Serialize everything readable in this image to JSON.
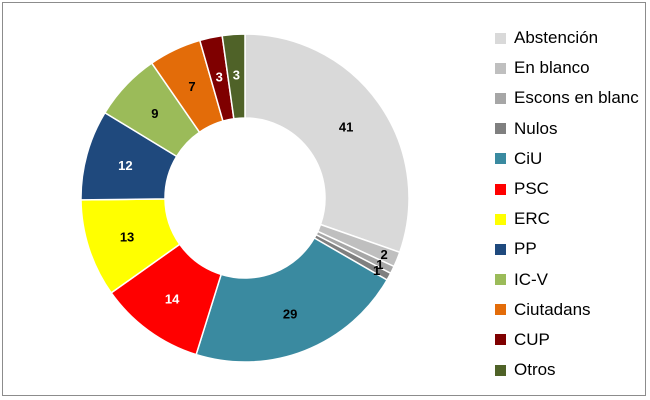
{
  "chart_data": {
    "type": "pie",
    "donut": true,
    "legend_position": "right",
    "slices": [
      {
        "name": "Abstención",
        "value": 41,
        "color": "#d9d9d9",
        "label_color": "#000000"
      },
      {
        "name": "En blanco",
        "value": 2,
        "color": "#bfbfbf",
        "label_color": "#000000"
      },
      {
        "name": "Escons en blanc",
        "value": 1,
        "color": "#a6a6a6",
        "label_color": "#000000"
      },
      {
        "name": "Nulos",
        "value": 1,
        "color": "#7f7f7f",
        "label_color": "#000000"
      },
      {
        "name": "CiU",
        "value": 29,
        "color": "#3a8aa0",
        "label_color": "#000000"
      },
      {
        "name": "PSC",
        "value": 14,
        "color": "#ff0000",
        "label_color": "#ffffff"
      },
      {
        "name": "ERC",
        "value": 13,
        "color": "#ffff00",
        "label_color": "#000000"
      },
      {
        "name": "PP",
        "value": 12,
        "color": "#1f497d",
        "label_color": "#ffffff"
      },
      {
        "name": "IC-V",
        "value": 9,
        "color": "#9bbb59",
        "label_color": "#000000"
      },
      {
        "name": "Ciutadans",
        "value": 7,
        "color": "#e36c09",
        "label_color": "#000000"
      },
      {
        "name": "CUP",
        "value": 3,
        "color": "#7f0000",
        "label_color": "#ffffff"
      },
      {
        "name": "Otros",
        "value": 3,
        "color": "#4f6228",
        "label_color": "#ffffff"
      }
    ]
  }
}
